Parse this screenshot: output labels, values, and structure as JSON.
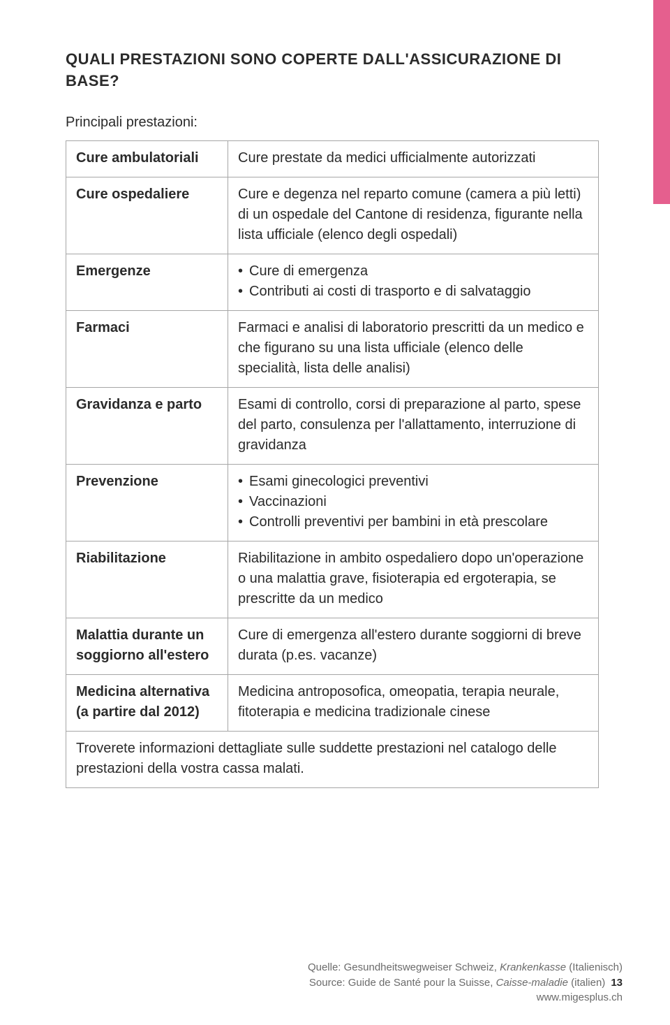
{
  "colors": {
    "page_bg": "#ffffff",
    "text": "#2b2b2b",
    "table_border": "#a6a6a6",
    "tab": "#e55f8e",
    "footer_text": "#6b6b6b"
  },
  "heading": "QUALI PRESTAZIONI SONO COPERTE DALL'ASSICURAZIONE DI BASE?",
  "intro": "Principali prestazioni:",
  "rows": [
    {
      "label": "Cure ambulatoriali",
      "text": "Cure prestate da medici ufficialmente autorizzati"
    },
    {
      "label": "Cure ospedaliere",
      "text": "Cure e degenza nel reparto comune (camera a più letti) di un ospedale del Cantone di residenza, figurante nella lista ufficiale (elenco degli ospedali)"
    },
    {
      "label": "Emergenze",
      "bullets": [
        "Cure di emergenza",
        "Contributi ai costi di trasporto e di salvataggio"
      ]
    },
    {
      "label": "Farmaci",
      "text": "Farmaci e analisi di laboratorio prescritti da un medico e che figurano su una lista ufficiale (elenco delle specialità, lista delle analisi)"
    },
    {
      "label": "Gravidanza e parto",
      "text": "Esami di controllo, corsi di preparazione al parto, spese del parto, consulenza per l'allattamento, interruzione di gravidanza"
    },
    {
      "label": "Prevenzione",
      "bullets": [
        "Esami ginecologici preventivi",
        "Vaccinazioni",
        "Controlli preventivi per bambini in età prescolare"
      ]
    },
    {
      "label": "Riabilitazione",
      "text": "Riabilitazione in ambito ospedaliero dopo un'operazione o una malattia grave, fisioterapia ed ergoterapia, se prescritte da un medico"
    },
    {
      "label": "Malattia durante un soggiorno all'estero",
      "text": "Cure di emergenza all'estero durante soggiorni di breve durata (p.es. vacanze)"
    },
    {
      "label": "Medicina alternativa (a partire dal 2012)",
      "text": "Medicina antroposofica, omeopatia, terapia neurale, fitoterapia e medicina tradizionale cinese"
    }
  ],
  "footer_row": "Troverete informazioni dettagliate sulle suddette prestazioni nel catalogo delle prestazioni della vostra cassa malati.",
  "footer": {
    "l1_plain": "Quelle: Gesundheitswegweiser Schweiz, ",
    "l1_ital": "Krankenkasse",
    "l1_tail": " (Italienisch)",
    "l2_plain": "Source: Guide de Santé pour la Suisse, ",
    "l2_ital": "Caisse-maladie",
    "l2_tail": " (italien)",
    "page_number": "13",
    "l3": "www.migesplus.ch"
  }
}
